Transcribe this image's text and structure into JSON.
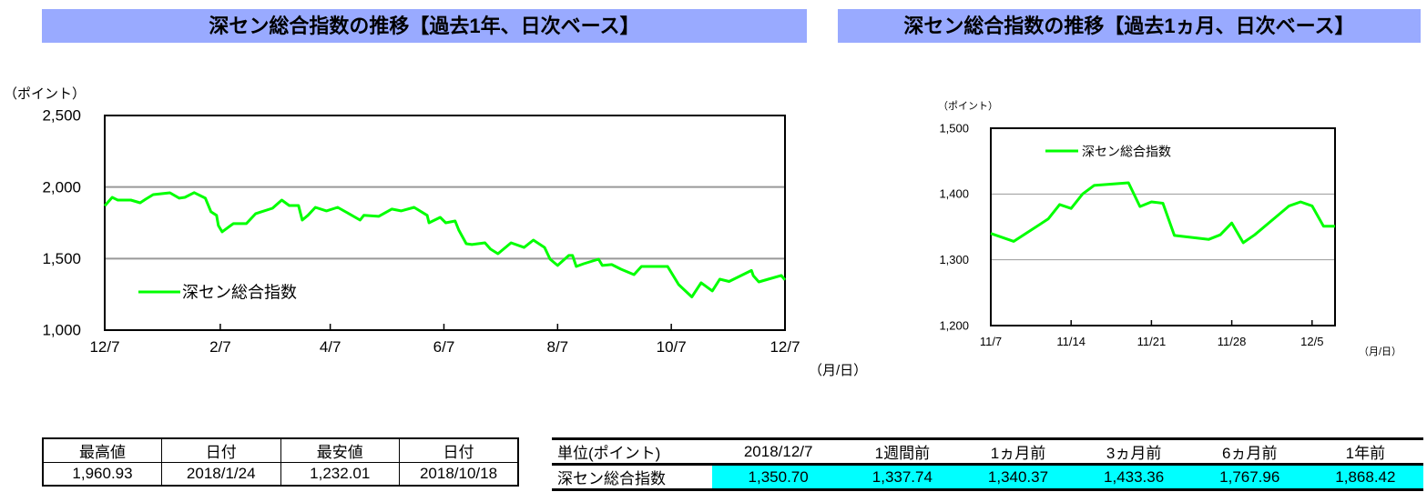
{
  "colors": {
    "title_bg": "#99aaff",
    "line": "#00ff00",
    "highlight": "#00ffff",
    "grid": "#999999"
  },
  "chart_data": [
    {
      "type": "line",
      "title": "深セン総合指数の推移【過去1年、日次ベース】",
      "ylabel": "（ポイント）",
      "xlabel": "（月/日）",
      "ylim": [
        1000,
        2500
      ],
      "yticks": [
        "1,000",
        "1,500",
        "2,000",
        "2,500"
      ],
      "ytick_values": [
        1000,
        1500,
        2000,
        2500
      ],
      "xlim": [
        "2017-12-07",
        "2018-12-07"
      ],
      "xticks": [
        "12/7",
        "2/7",
        "4/7",
        "6/7",
        "8/7",
        "10/7",
        "12/7"
      ],
      "xtick_dates": [
        "2017-12-07",
        "2018-02-07",
        "2018-04-07",
        "2018-06-07",
        "2018-08-07",
        "2018-10-07",
        "2018-12-07"
      ],
      "grid": true,
      "legend": "left-bottom",
      "series": [
        {
          "name": "深セン総合指数",
          "points": [
            [
              "2017-12-07",
              1868
            ],
            [
              "2017-12-11",
              1928
            ],
            [
              "2017-12-14",
              1909
            ],
            [
              "2017-12-21",
              1909
            ],
            [
              "2017-12-26",
              1890
            ],
            [
              "2017-12-29",
              1915
            ],
            [
              "2018-01-02",
              1947
            ],
            [
              "2018-01-11",
              1960
            ],
            [
              "2018-01-16",
              1922
            ],
            [
              "2018-01-19",
              1928
            ],
            [
              "2018-01-24",
              1961
            ],
            [
              "2018-01-30",
              1922
            ],
            [
              "2018-02-02",
              1827
            ],
            [
              "2018-02-05",
              1802
            ],
            [
              "2018-02-06",
              1731
            ],
            [
              "2018-02-08",
              1687
            ],
            [
              "2018-02-14",
              1744
            ],
            [
              "2018-02-21",
              1744
            ],
            [
              "2018-02-26",
              1814
            ],
            [
              "2018-03-01",
              1827
            ],
            [
              "2018-03-07",
              1852
            ],
            [
              "2018-03-12",
              1909
            ],
            [
              "2018-03-16",
              1871
            ],
            [
              "2018-03-21",
              1871
            ],
            [
              "2018-03-23",
              1769
            ],
            [
              "2018-03-26",
              1802
            ],
            [
              "2018-03-30",
              1858
            ],
            [
              "2018-04-05",
              1833
            ],
            [
              "2018-04-11",
              1858
            ],
            [
              "2018-04-17",
              1814
            ],
            [
              "2018-04-23",
              1769
            ],
            [
              "2018-04-25",
              1802
            ],
            [
              "2018-05-03",
              1795
            ],
            [
              "2018-05-10",
              1846
            ],
            [
              "2018-05-15",
              1833
            ],
            [
              "2018-05-22",
              1858
            ],
            [
              "2018-05-29",
              1802
            ],
            [
              "2018-05-30",
              1750
            ],
            [
              "2018-06-05",
              1788
            ],
            [
              "2018-06-08",
              1750
            ],
            [
              "2018-06-13",
              1763
            ],
            [
              "2018-06-15",
              1699
            ],
            [
              "2018-06-19",
              1604
            ],
            [
              "2018-06-22",
              1598
            ],
            [
              "2018-06-29",
              1610
            ],
            [
              "2018-07-02",
              1566
            ],
            [
              "2018-07-06",
              1534
            ],
            [
              "2018-07-13",
              1610
            ],
            [
              "2018-07-20",
              1578
            ],
            [
              "2018-07-25",
              1629
            ],
            [
              "2018-07-31",
              1578
            ],
            [
              "2018-08-03",
              1496
            ],
            [
              "2018-08-07",
              1452
            ],
            [
              "2018-08-13",
              1522
            ],
            [
              "2018-08-15",
              1522
            ],
            [
              "2018-08-17",
              1445
            ],
            [
              "2018-08-21",
              1464
            ],
            [
              "2018-08-29",
              1496
            ],
            [
              "2018-08-31",
              1452
            ],
            [
              "2018-09-05",
              1458
            ],
            [
              "2018-09-10",
              1426
            ],
            [
              "2018-09-17",
              1388
            ],
            [
              "2018-09-21",
              1445
            ],
            [
              "2018-10-05",
              1445
            ],
            [
              "2018-10-11",
              1318
            ],
            [
              "2018-10-18",
              1232
            ],
            [
              "2018-10-23",
              1331
            ],
            [
              "2018-10-29",
              1274
            ],
            [
              "2018-11-02",
              1356
            ],
            [
              "2018-11-07",
              1340
            ],
            [
              "2018-11-19",
              1417
            ],
            [
              "2018-11-20",
              1381
            ],
            [
              "2018-11-23",
              1337
            ],
            [
              "2018-11-28",
              1356
            ],
            [
              "2018-12-05",
              1382
            ],
            [
              "2018-12-07",
              1351
            ]
          ]
        }
      ]
    },
    {
      "type": "line",
      "title": "深セン総合指数の推移【過去1ヵ月、日次ベース】",
      "ylabel": "（ポイント）",
      "xlabel": "（月/日）",
      "ylim": [
        1200,
        1500
      ],
      "yticks": [
        "1,200",
        "1,300",
        "1,400",
        "1,500"
      ],
      "ytick_values": [
        1200,
        1300,
        1400,
        1500
      ],
      "xlim": [
        "2018-11-07",
        "2018-12-07"
      ],
      "xticks": [
        "11/7",
        "11/14",
        "11/21",
        "11/28",
        "12/5"
      ],
      "xtick_dates": [
        "2018-11-07",
        "2018-11-14",
        "2018-11-21",
        "2018-11-28",
        "2018-12-05"
      ],
      "grid": true,
      "legend": "top-left",
      "series": [
        {
          "name": "深セン総合指数",
          "points": [
            [
              "2018-11-07",
              1340
            ],
            [
              "2018-11-08",
              1334
            ],
            [
              "2018-11-09",
              1328
            ],
            [
              "2018-11-12",
              1362
            ],
            [
              "2018-11-13",
              1384
            ],
            [
              "2018-11-14",
              1378
            ],
            [
              "2018-11-15",
              1400
            ],
            [
              "2018-11-16",
              1413
            ],
            [
              "2018-11-19",
              1417
            ],
            [
              "2018-11-20",
              1381
            ],
            [
              "2018-11-21",
              1388
            ],
            [
              "2018-11-22",
              1386
            ],
            [
              "2018-11-23",
              1337
            ],
            [
              "2018-11-26",
              1331
            ],
            [
              "2018-11-27",
              1338
            ],
            [
              "2018-11-28",
              1356
            ],
            [
              "2018-11-29",
              1326
            ],
            [
              "2018-11-30",
              1338
            ],
            [
              "2018-12-03",
              1382
            ],
            [
              "2018-12-04",
              1388
            ],
            [
              "2018-12-05",
              1382
            ],
            [
              "2018-12-06",
              1351
            ],
            [
              "2018-12-07",
              1351
            ]
          ]
        }
      ]
    }
  ],
  "extremes_table": {
    "headers": [
      "最高値",
      "日付",
      "最安値",
      "日付"
    ],
    "values": [
      "1,960.93",
      "2018/1/24",
      "1,232.01",
      "2018/10/18"
    ]
  },
  "summary_table": {
    "unit_label": "単位(ポイント)",
    "headers": [
      "2018/12/7",
      "1週間前",
      "1ヵ月前",
      "3ヵ月前",
      "6ヵ月前",
      "1年前"
    ],
    "row_label": "深セン総合指数",
    "values": [
      "1,350.70",
      "1,337.74",
      "1,340.37",
      "1,433.36",
      "1,767.96",
      "1,868.42"
    ]
  }
}
